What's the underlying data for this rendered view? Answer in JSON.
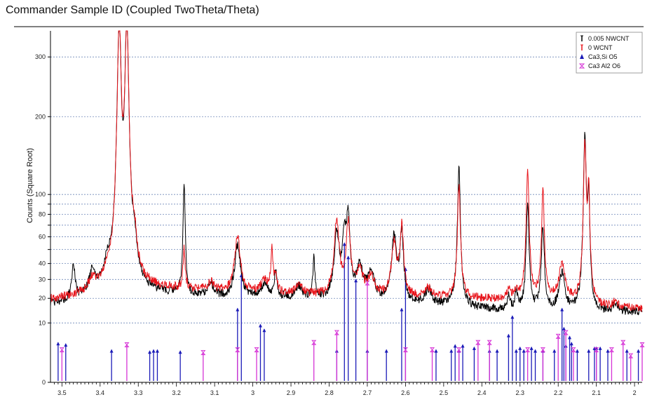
{
  "title": "Commander Sample ID (Coupled TwoTheta/Theta)",
  "colors": {
    "nwcnt": "#000000",
    "wcnt": "#e8141b",
    "ca3sio5": "#1b1bb8",
    "ca3al2o6": "#d633d6",
    "grid": "#6f87b8"
  },
  "chart_data": {
    "type": "line",
    "title": "Commander Sample ID (Coupled TwoTheta/Theta)",
    "xlabel": "",
    "ylabel": "Counts (Square Root)",
    "x_scale": "d-spacing, reversed (decreasing to the right)",
    "y_scale": "square root",
    "xlim": [
      3.53,
      1.98
    ],
    "ylim": [
      0,
      350
    ],
    "x_ticks": [
      3.5,
      3.4,
      3.3,
      3.2,
      3.1,
      3,
      2.9,
      2.8,
      2.7,
      2.6,
      2.5,
      2.4,
      2.3,
      2.2,
      2.1,
      2
    ],
    "x_tick_labels": [
      "3.5",
      "3.4",
      "3.3",
      "3.2",
      "3.1",
      "3",
      "2.9",
      "2.8",
      "2.7",
      "2.6",
      "2.5",
      "2.4",
      "2.3",
      "2.2",
      "2.1",
      "2"
    ],
    "y_ticks": [
      0,
      10,
      20,
      30,
      40,
      50,
      60,
      70,
      80,
      90,
      100,
      200,
      300
    ],
    "y_tick_labels": [
      "0",
      "10",
      "20",
      "30",
      "40",
      "",
      "60",
      "",
      "80",
      "",
      "100",
      "200",
      "300"
    ],
    "grid": true,
    "legend_position": "top-right",
    "series": [
      {
        "name": "0.005 NWCNT",
        "color": "#000000",
        "baseline": [
          [
            3.53,
            17
          ],
          [
            3.45,
            18
          ],
          [
            3.35,
            22
          ],
          [
            3.25,
            22
          ],
          [
            3.1,
            20
          ],
          [
            2.95,
            20
          ],
          [
            2.8,
            19
          ],
          [
            2.6,
            17
          ],
          [
            2.45,
            16
          ],
          [
            2.3,
            14
          ],
          [
            2.2,
            14
          ],
          [
            2.1,
            13
          ],
          [
            1.98,
            14
          ]
        ],
        "peaks": [
          {
            "x": 3.47,
            "h": 37,
            "w": 0.005
          },
          {
            "x": 3.42,
            "h": 33,
            "w": 0.01
          },
          {
            "x": 3.38,
            "h": 35,
            "w": 0.01
          },
          {
            "x": 3.35,
            "h": 350,
            "w": 0.006
          },
          {
            "x": 3.33,
            "h": 350,
            "w": 0.006
          },
          {
            "x": 3.31,
            "h": 45,
            "w": 0.007
          },
          {
            "x": 3.18,
            "h": 115,
            "w": 0.003
          },
          {
            "x": 3.11,
            "h": 27,
            "w": 0.01
          },
          {
            "x": 3.04,
            "h": 53,
            "w": 0.008
          },
          {
            "x": 2.97,
            "h": 27,
            "w": 0.01
          },
          {
            "x": 2.94,
            "h": 34,
            "w": 0.004
          },
          {
            "x": 2.88,
            "h": 26,
            "w": 0.01
          },
          {
            "x": 2.84,
            "h": 43,
            "w": 0.003
          },
          {
            "x": 2.78,
            "h": 62,
            "w": 0.007
          },
          {
            "x": 2.76,
            "h": 55,
            "w": 0.006
          },
          {
            "x": 2.75,
            "h": 73,
            "w": 0.005
          },
          {
            "x": 2.72,
            "h": 36,
            "w": 0.01
          },
          {
            "x": 2.69,
            "h": 33,
            "w": 0.01
          },
          {
            "x": 2.63,
            "h": 59,
            "w": 0.007
          },
          {
            "x": 2.61,
            "h": 63,
            "w": 0.005
          },
          {
            "x": 2.54,
            "h": 24,
            "w": 0.01
          },
          {
            "x": 2.46,
            "h": 130,
            "w": 0.004
          },
          {
            "x": 2.33,
            "h": 21,
            "w": 0.004
          },
          {
            "x": 2.31,
            "h": 22,
            "w": 0.004
          },
          {
            "x": 2.28,
            "h": 90,
            "w": 0.004
          },
          {
            "x": 2.24,
            "h": 70,
            "w": 0.004
          },
          {
            "x": 2.19,
            "h": 33,
            "w": 0.008
          },
          {
            "x": 2.13,
            "h": 173,
            "w": 0.004
          },
          {
            "x": 2.12,
            "h": 95,
            "w": 0.003
          },
          {
            "x": 2.05,
            "h": 17,
            "w": 0.01
          }
        ]
      },
      {
        "name": "0 WCNT",
        "color": "#e8141b",
        "baseline": [
          [
            3.53,
            19
          ],
          [
            3.45,
            21
          ],
          [
            3.35,
            25
          ],
          [
            3.25,
            25
          ],
          [
            3.1,
            23
          ],
          [
            2.95,
            22
          ],
          [
            2.8,
            21
          ],
          [
            2.6,
            20
          ],
          [
            2.45,
            20
          ],
          [
            2.3,
            19
          ],
          [
            2.2,
            19
          ],
          [
            2.1,
            16
          ],
          [
            1.98,
            15
          ]
        ],
        "peaks": [
          {
            "x": 3.42,
            "h": 29,
            "w": 0.01
          },
          {
            "x": 3.38,
            "h": 29,
            "w": 0.01
          },
          {
            "x": 3.35,
            "h": 350,
            "w": 0.006
          },
          {
            "x": 3.33,
            "h": 350,
            "w": 0.006
          },
          {
            "x": 3.31,
            "h": 48,
            "w": 0.007
          },
          {
            "x": 3.18,
            "h": 50,
            "w": 0.003
          },
          {
            "x": 3.11,
            "h": 28,
            "w": 0.01
          },
          {
            "x": 3.04,
            "h": 60,
            "w": 0.008
          },
          {
            "x": 2.97,
            "h": 29,
            "w": 0.01
          },
          {
            "x": 2.95,
            "h": 49,
            "w": 0.003
          },
          {
            "x": 2.94,
            "h": 32,
            "w": 0.004
          },
          {
            "x": 2.88,
            "h": 27,
            "w": 0.01
          },
          {
            "x": 2.78,
            "h": 73,
            "w": 0.007
          },
          {
            "x": 2.75,
            "h": 71,
            "w": 0.006
          },
          {
            "x": 2.72,
            "h": 34,
            "w": 0.01
          },
          {
            "x": 2.69,
            "h": 31,
            "w": 0.01
          },
          {
            "x": 2.63,
            "h": 55,
            "w": 0.007
          },
          {
            "x": 2.61,
            "h": 69,
            "w": 0.005
          },
          {
            "x": 2.54,
            "h": 25,
            "w": 0.01
          },
          {
            "x": 2.46,
            "h": 110,
            "w": 0.004
          },
          {
            "x": 2.33,
            "h": 24,
            "w": 0.005
          },
          {
            "x": 2.31,
            "h": 24,
            "w": 0.005
          },
          {
            "x": 2.28,
            "h": 127,
            "w": 0.004
          },
          {
            "x": 2.24,
            "h": 103,
            "w": 0.004
          },
          {
            "x": 2.19,
            "h": 40,
            "w": 0.008
          },
          {
            "x": 2.13,
            "h": 160,
            "w": 0.004
          },
          {
            "x": 2.12,
            "h": 102,
            "w": 0.003
          },
          {
            "x": 2.05,
            "h": 18,
            "w": 0.01
          }
        ]
      }
    ],
    "reference_patterns": [
      {
        "name": "Ca3,Si O5",
        "color": "#1b1bb8",
        "marker": "triangle",
        "lines": [
          [
            3.51,
            4.5
          ],
          [
            3.49,
            4.2
          ],
          [
            3.37,
            3.0
          ],
          [
            3.27,
            2.8
          ],
          [
            3.26,
            3.0
          ],
          [
            3.25,
            3.0
          ],
          [
            3.19,
            2.8
          ],
          [
            3.04,
            15.5
          ],
          [
            3.03,
            33
          ],
          [
            2.98,
            9.5
          ],
          [
            2.97,
            8
          ],
          [
            2.78,
            3.0
          ],
          [
            2.76,
            55
          ],
          [
            2.75,
            45
          ],
          [
            2.73,
            30
          ],
          [
            2.7,
            3.0
          ],
          [
            2.65,
            3.0
          ],
          [
            2.61,
            15.5
          ],
          [
            2.6,
            37
          ],
          [
            2.52,
            3.0
          ],
          [
            2.48,
            3.0
          ],
          [
            2.47,
            4.0
          ],
          [
            2.46,
            3.0
          ],
          [
            2.45,
            4.0
          ],
          [
            2.42,
            3.5
          ],
          [
            2.38,
            3.0
          ],
          [
            2.36,
            3.0
          ],
          [
            2.33,
            6.5
          ],
          [
            2.32,
            12.5
          ],
          [
            2.31,
            3.0
          ],
          [
            2.3,
            3.5
          ],
          [
            2.29,
            3.0
          ],
          [
            2.27,
            3.5
          ],
          [
            2.26,
            3.0
          ],
          [
            2.24,
            3.0
          ],
          [
            2.21,
            3.0
          ],
          [
            2.19,
            15.5
          ],
          [
            2.185,
            8.5
          ],
          [
            2.18,
            4.0
          ],
          [
            2.17,
            6.0
          ],
          [
            2.165,
            4.5
          ],
          [
            2.15,
            3.0
          ],
          [
            2.12,
            3.0
          ],
          [
            2.105,
            3.5
          ],
          [
            2.1,
            3.5
          ],
          [
            2.09,
            3.5
          ],
          [
            2.07,
            3.0
          ],
          [
            2.02,
            3.0
          ],
          [
            1.99,
            3.0
          ]
        ]
      },
      {
        "name": "Ca3 Al2 O6",
        "color": "#d633d6",
        "marker": "hourglass",
        "lines": [
          [
            3.5,
            3.0
          ],
          [
            3.33,
            4.0
          ],
          [
            3.13,
            2.5
          ],
          [
            3.04,
            3.0
          ],
          [
            2.99,
            3.0
          ],
          [
            2.84,
            4.5
          ],
          [
            2.78,
            7.0
          ],
          [
            2.7,
            28
          ],
          [
            2.6,
            3.0
          ],
          [
            2.53,
            3.0
          ],
          [
            2.46,
            3.0
          ],
          [
            2.41,
            4.5
          ],
          [
            2.38,
            4.5
          ],
          [
            2.28,
            3.0
          ],
          [
            2.24,
            3.0
          ],
          [
            2.2,
            6.0
          ],
          [
            2.18,
            7.0
          ],
          [
            2.16,
            3.0
          ],
          [
            2.1,
            3.0
          ],
          [
            2.06,
            3.0
          ],
          [
            2.03,
            4.5
          ],
          [
            2.01,
            2.0
          ],
          [
            1.98,
            4.0
          ]
        ]
      }
    ]
  }
}
